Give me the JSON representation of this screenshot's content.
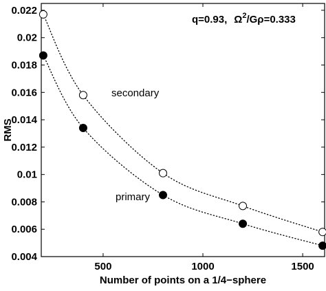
{
  "chart_data": {
    "type": "scatter",
    "xlabel": "Number of points on a 1/4−sphere",
    "ylabel": "RMS",
    "xlim": [
      190,
      1610
    ],
    "ylim": [
      0.004,
      0.0225
    ],
    "xticks": [
      500,
      1000,
      1500
    ],
    "xtick_labels": [
      "500",
      "1000",
      "1500"
    ],
    "yticks": [
      0.004,
      0.006,
      0.008,
      0.01,
      0.012,
      0.014,
      0.016,
      0.018,
      0.02,
      0.022
    ],
    "ytick_labels": [
      "0.004",
      "0.006",
      "0.008",
      "0.01",
      "0.012",
      "0.014",
      "0.016",
      "0.018",
      "0.02",
      "0.022"
    ],
    "grid": false,
    "series": [
      {
        "name": "secondary",
        "marker": "open-circle",
        "line_style": "dotted",
        "x": [
          200,
          400,
          800,
          1200,
          1600
        ],
        "y": [
          0.0217,
          0.0158,
          0.0101,
          0.0077,
          0.0058
        ]
      },
      {
        "name": "primary",
        "marker": "filled-circle",
        "line_style": "dotted",
        "x": [
          200,
          400,
          800,
          1200,
          1600
        ],
        "y": [
          0.0187,
          0.0134,
          0.0085,
          0.0064,
          0.0048
        ]
      }
    ],
    "annotations": {
      "secondary_label": "secondary",
      "primary_label": "primary",
      "params_q": "q=0.93,",
      "params_omega_prefix": "Ω",
      "params_omega_sup": "2",
      "params_omega_suffix": "/Gρ=0.333"
    },
    "colors": {
      "marker": "#000000",
      "line": "#000000",
      "background": "#ffffff"
    }
  }
}
